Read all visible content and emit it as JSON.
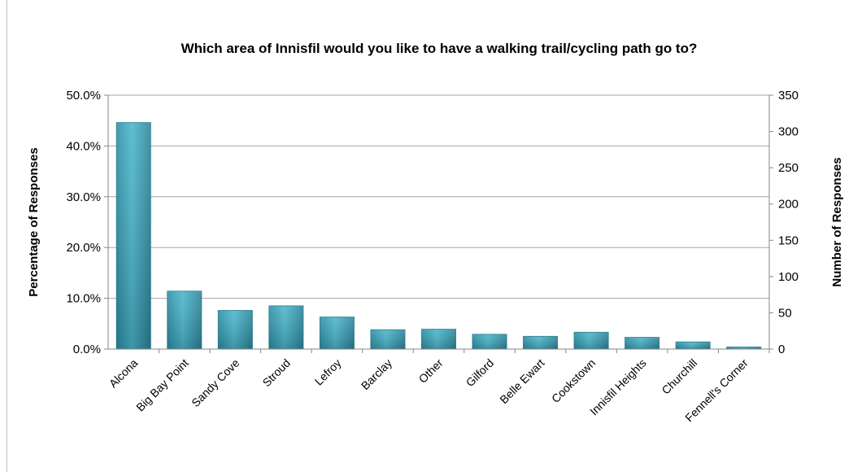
{
  "chart_data": {
    "type": "bar",
    "title": "Which area of Innisfil would you like to have a walking trail/cycling path go to?",
    "ylabel": "Percentage of Responses",
    "y2label": "Number of Responses",
    "ylim": [
      0,
      50
    ],
    "y2lim": [
      0,
      350
    ],
    "yticks": [
      "0.0%",
      "10.0%",
      "20.0%",
      "30.0%",
      "40.0%",
      "50.0%"
    ],
    "y2ticks": [
      "0",
      "50",
      "100",
      "150",
      "200",
      "250",
      "300",
      "350"
    ],
    "categories": [
      "Alcona",
      "Big Bay Point",
      "Sandy Cove",
      "Stroud",
      "Lefroy",
      "Barclay",
      "Other",
      "Gilford",
      "Belle Ewart",
      "Cookstown",
      "Innisfil Heights",
      "Churchill",
      "Fennell's Corner"
    ],
    "values": [
      44.6,
      11.4,
      7.6,
      8.5,
      6.3,
      3.8,
      3.9,
      2.9,
      2.5,
      3.3,
      2.3,
      1.4,
      0.4
    ],
    "grid": true,
    "bar_color": "#3a9fb4",
    "bar_edge_color": "#2a7f92",
    "grid_color": "#a6a6a6"
  }
}
